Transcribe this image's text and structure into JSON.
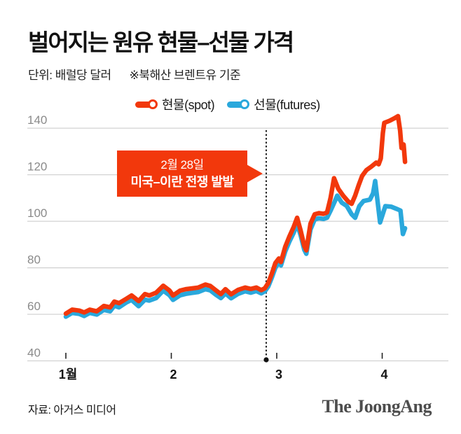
{
  "header": {
    "title": "벌어지는 원유 현물–선물 가격",
    "unit_label": "단위: 배럴당 달러",
    "basis_label": "※북해산 브렌트유 기준"
  },
  "footer": {
    "source": "자료: 아거스 미디어",
    "logo": "The JoongAng"
  },
  "colors": {
    "spot": "#f2380c",
    "futures": "#2aa8dc",
    "annotation_bg": "#f2380c",
    "annotation_text": "#ffffff",
    "grid": "#d2d2d2",
    "y_tick_text": "#8a8a8a",
    "x_tick_text": "#141414",
    "event_line": "#222222"
  },
  "chart_data": {
    "type": "line",
    "title": "벌어지는 원유 현물–선물 가격",
    "unit_note": "단위: 배럴당 달러",
    "basis_note": "※북해산 브렌트유 기준",
    "legend_position": "top",
    "grid": true,
    "y_axis": {
      "ticks": [
        40,
        60,
        80,
        100,
        120,
        140
      ],
      "min": 40,
      "max": 148
    },
    "x_axis": {
      "unit": "days-from-jan-1",
      "domain": [
        0,
        96.5
      ],
      "ticks": [
        {
          "day": 0,
          "label": "1월"
        },
        {
          "day": 30,
          "label": "2"
        },
        {
          "day": 60,
          "label": "3"
        },
        {
          "day": 90,
          "label": "4"
        }
      ]
    },
    "annotation": {
      "line1": "2월 28일",
      "line2": "미국–이란 전쟁 발발",
      "event_day": 57
    },
    "series": [
      {
        "name": "현물(spot)",
        "key": "spot",
        "color": "#f2380c",
        "points": [
          [
            0,
            60.3
          ],
          [
            1.8,
            62
          ],
          [
            3.8,
            61.6
          ],
          [
            5.2,
            60.8
          ],
          [
            6.8,
            62
          ],
          [
            8.8,
            61.3
          ],
          [
            10.8,
            63.6
          ],
          [
            12.6,
            63
          ],
          [
            13.8,
            65.5
          ],
          [
            15.1,
            64.8
          ],
          [
            17.1,
            66.6
          ],
          [
            18.7,
            68.1
          ],
          [
            20.7,
            65.7
          ],
          [
            22.5,
            68.7
          ],
          [
            23.7,
            68.1
          ],
          [
            25.7,
            69.3
          ],
          [
            27.7,
            72.3
          ],
          [
            29.5,
            70.2
          ],
          [
            30.5,
            68.1
          ],
          [
            32.5,
            70.2
          ],
          [
            34.1,
            70.8
          ],
          [
            35.7,
            71.1
          ],
          [
            37.7,
            71.5
          ],
          [
            39.7,
            72.8
          ],
          [
            41.1,
            72.2
          ],
          [
            42.7,
            70.3
          ],
          [
            44.1,
            68.7
          ],
          [
            45.4,
            70.8
          ],
          [
            47,
            68.6
          ],
          [
            49,
            70.5
          ],
          [
            51,
            71.5
          ],
          [
            52.6,
            70.9
          ],
          [
            54.2,
            71.5
          ],
          [
            55.6,
            70.4
          ],
          [
            56.6,
            71.2
          ],
          [
            57.6,
            73.5
          ],
          [
            58.6,
            77.5
          ],
          [
            59.6,
            82
          ],
          [
            60.6,
            84
          ],
          [
            61.2,
            82.5
          ],
          [
            62.4,
            89
          ],
          [
            63.6,
            93.5
          ],
          [
            64.8,
            97.5
          ],
          [
            65.8,
            101.5
          ],
          [
            66.8,
            96
          ],
          [
            67.8,
            89.5
          ],
          [
            68.4,
            87.5
          ],
          [
            69.6,
            99
          ],
          [
            70.8,
            103
          ],
          [
            72,
            103.5
          ],
          [
            73.3,
            103.2
          ],
          [
            74.3,
            103.8
          ],
          [
            75.3,
            110
          ],
          [
            76.3,
            118.5
          ],
          [
            77.5,
            114
          ],
          [
            78.9,
            111
          ],
          [
            80.3,
            108.5
          ],
          [
            81.3,
            107.5
          ],
          [
            82.3,
            111
          ],
          [
            83.3,
            115.5
          ],
          [
            84.3,
            119.5
          ],
          [
            85.5,
            122
          ],
          [
            86.9,
            123.5
          ],
          [
            88.3,
            125.2
          ],
          [
            89,
            124.5
          ],
          [
            89.6,
            127
          ],
          [
            90.2,
            138
          ],
          [
            90.6,
            142.3
          ],
          [
            92.1,
            143.2
          ],
          [
            93.5,
            144.3
          ],
          [
            94.5,
            145.2
          ],
          [
            95.1,
            139
          ],
          [
            95.5,
            131.5
          ],
          [
            96.1,
            133
          ],
          [
            96.5,
            125.5
          ]
        ]
      },
      {
        "name": "선물(futures)",
        "key": "futures",
        "color": "#2aa8dc",
        "points": [
          [
            0,
            59
          ],
          [
            1.8,
            60.6
          ],
          [
            3.8,
            60.2
          ],
          [
            5.2,
            59.3
          ],
          [
            6.8,
            60.6
          ],
          [
            8.8,
            59.9
          ],
          [
            10.8,
            61.9
          ],
          [
            12.6,
            61.3
          ],
          [
            13.8,
            63.7
          ],
          [
            15.1,
            63
          ],
          [
            17.1,
            65
          ],
          [
            18.7,
            66.2
          ],
          [
            20.7,
            63.5
          ],
          [
            22.5,
            66.3
          ],
          [
            23.7,
            65.9
          ],
          [
            25.7,
            67
          ],
          [
            27.7,
            70.2
          ],
          [
            29.5,
            68.2
          ],
          [
            30.5,
            66.2
          ],
          [
            32.5,
            68.2
          ],
          [
            34.1,
            68.8
          ],
          [
            35.7,
            69.2
          ],
          [
            37.7,
            69.6
          ],
          [
            39.7,
            70.8
          ],
          [
            41.1,
            70.3
          ],
          [
            42.7,
            68.4
          ],
          [
            44.1,
            67
          ],
          [
            45.4,
            69
          ],
          [
            47,
            66.9
          ],
          [
            49,
            68.8
          ],
          [
            51,
            69.9
          ],
          [
            52.6,
            69.3
          ],
          [
            54.2,
            70
          ],
          [
            55.6,
            69
          ],
          [
            56.6,
            69.9
          ],
          [
            57.6,
            72
          ],
          [
            58.6,
            75.8
          ],
          [
            59.6,
            80
          ],
          [
            60.6,
            82.3
          ],
          [
            61.2,
            81
          ],
          [
            62.4,
            87
          ],
          [
            63.6,
            91.3
          ],
          [
            64.8,
            95
          ],
          [
            65.8,
            98.8
          ],
          [
            66.8,
            94
          ],
          [
            67.8,
            87.8
          ],
          [
            68.4,
            86
          ],
          [
            69.6,
            96.5
          ],
          [
            70.8,
            100.8
          ],
          [
            72,
            101.3
          ],
          [
            73.3,
            101
          ],
          [
            74.3,
            101.5
          ],
          [
            75.3,
            104.5
          ],
          [
            76.5,
            108.5
          ],
          [
            77.2,
            111
          ],
          [
            78.5,
            108
          ],
          [
            79.9,
            106.6
          ],
          [
            81.3,
            103
          ],
          [
            82.3,
            101.5
          ],
          [
            83.5,
            106.5
          ],
          [
            84.7,
            108.7
          ],
          [
            86.5,
            109.3
          ],
          [
            87.4,
            112
          ],
          [
            88,
            117.3
          ],
          [
            89.4,
            99.5
          ],
          [
            90.9,
            106.5
          ],
          [
            92.5,
            106.3
          ],
          [
            94.3,
            105.2
          ],
          [
            95.2,
            104.6
          ],
          [
            95.9,
            94.5
          ],
          [
            96.5,
            97
          ]
        ]
      }
    ]
  }
}
